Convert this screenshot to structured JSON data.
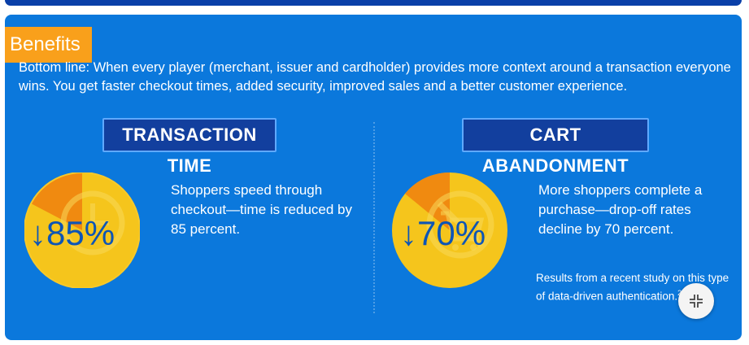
{
  "section": {
    "tab_label": "Benefits",
    "intro": "Bottom line: When every player (merchant, issuer and cardholder) provides more context around a transaction everyone wins. You get faster checkout times, added security, improved sales and a better customer experience."
  },
  "benefits": [
    {
      "heading": "TRANSACTION TIME",
      "arrow": "↓",
      "stat": "85%",
      "description": "Shoppers speed through checkout—time is reduced by 85 percent.",
      "icon": "clock-icon"
    },
    {
      "heading": "CART ABANDONMENT",
      "arrow": "↓",
      "stat": "70%",
      "description": "More shoppers complete a purchase—drop-off rates decline by 70 percent.",
      "icon": "no-cart-icon"
    }
  ],
  "footnote": {
    "text": "Results from a recent study on this type of data-driven authentication.",
    "superscript": "2"
  },
  "controls": {
    "collapse_icon": "collapse-arrows-icon"
  },
  "colors": {
    "panel_bg": "#0b78dc",
    "tab_bg": "#f9a01b",
    "badge_bg": "#123f9e",
    "stat_text": "#0d55b6",
    "gauge_gold": "#f5c51c",
    "gauge_orange": "#f08a10"
  }
}
